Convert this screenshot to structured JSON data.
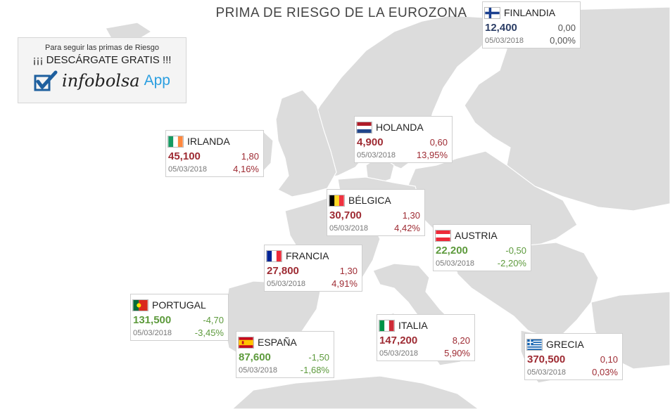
{
  "title": "PRIMA DE RIESGO DE LA EUROZONA",
  "promo": {
    "line1": "Para seguir las primas de Riesgo",
    "line2": "¡¡¡ DESCÁRGATE GRATIS !!!",
    "brand": "infobolsa",
    "app": "App",
    "accent_color": "#2a9ee0"
  },
  "colors": {
    "negative": "#9e2b33",
    "positive": "#5d9a3c",
    "unchanged": "#2c3e66",
    "land": "#dcdcdc",
    "sea": "#ffffff"
  },
  "countries": [
    {
      "id": "finlandia",
      "name": "FINLANDIA",
      "flag_icon": "finland-flag-icon",
      "value": "12,400",
      "change": "0,00",
      "pct": "0,00%",
      "date": "05/03/2018",
      "trend": "unchanged"
    },
    {
      "id": "holanda",
      "name": "HOLANDA",
      "flag_icon": "netherlands-flag-icon",
      "value": "4,900",
      "change": "0,60",
      "pct": "13,95%",
      "date": "05/03/2018",
      "trend": "up"
    },
    {
      "id": "irlanda",
      "name": "IRLANDA",
      "flag_icon": "ireland-flag-icon",
      "value": "45,100",
      "change": "1,80",
      "pct": "4,16%",
      "date": "05/03/2018",
      "trend": "up"
    },
    {
      "id": "belgica",
      "name": "BÉLGICA",
      "flag_icon": "belgium-flag-icon",
      "value": "30,700",
      "change": "1,30",
      "pct": "4,42%",
      "date": "05/03/2018",
      "trend": "up"
    },
    {
      "id": "austria",
      "name": "AUSTRIA",
      "flag_icon": "austria-flag-icon",
      "value": "22,200",
      "change": "-0,50",
      "pct": "-2,20%",
      "date": "05/03/2018",
      "trend": "down"
    },
    {
      "id": "francia",
      "name": "FRANCIA",
      "flag_icon": "france-flag-icon",
      "value": "27,800",
      "change": "1,30",
      "pct": "4,91%",
      "date": "05/03/2018",
      "trend": "up"
    },
    {
      "id": "portugal",
      "name": "PORTUGAL",
      "flag_icon": "portugal-flag-icon",
      "value": "131,500",
      "change": "-4,70",
      "pct": "-3,45%",
      "date": "05/03/2018",
      "trend": "down"
    },
    {
      "id": "espana",
      "name": "ESPAÑA",
      "flag_icon": "spain-flag-icon",
      "value": "87,600",
      "change": "-1,50",
      "pct": "-1,68%",
      "date": "05/03/2018",
      "trend": "down"
    },
    {
      "id": "italia",
      "name": "ITALIA",
      "flag_icon": "italy-flag-icon",
      "value": "147,200",
      "change": "8,20",
      "pct": "5,90%",
      "date": "05/03/2018",
      "trend": "up"
    },
    {
      "id": "grecia",
      "name": "GRECIA",
      "flag_icon": "greece-flag-icon",
      "value": "370,500",
      "change": "0,10",
      "pct": "0,03%",
      "date": "05/03/2018",
      "trend": "up"
    }
  ]
}
